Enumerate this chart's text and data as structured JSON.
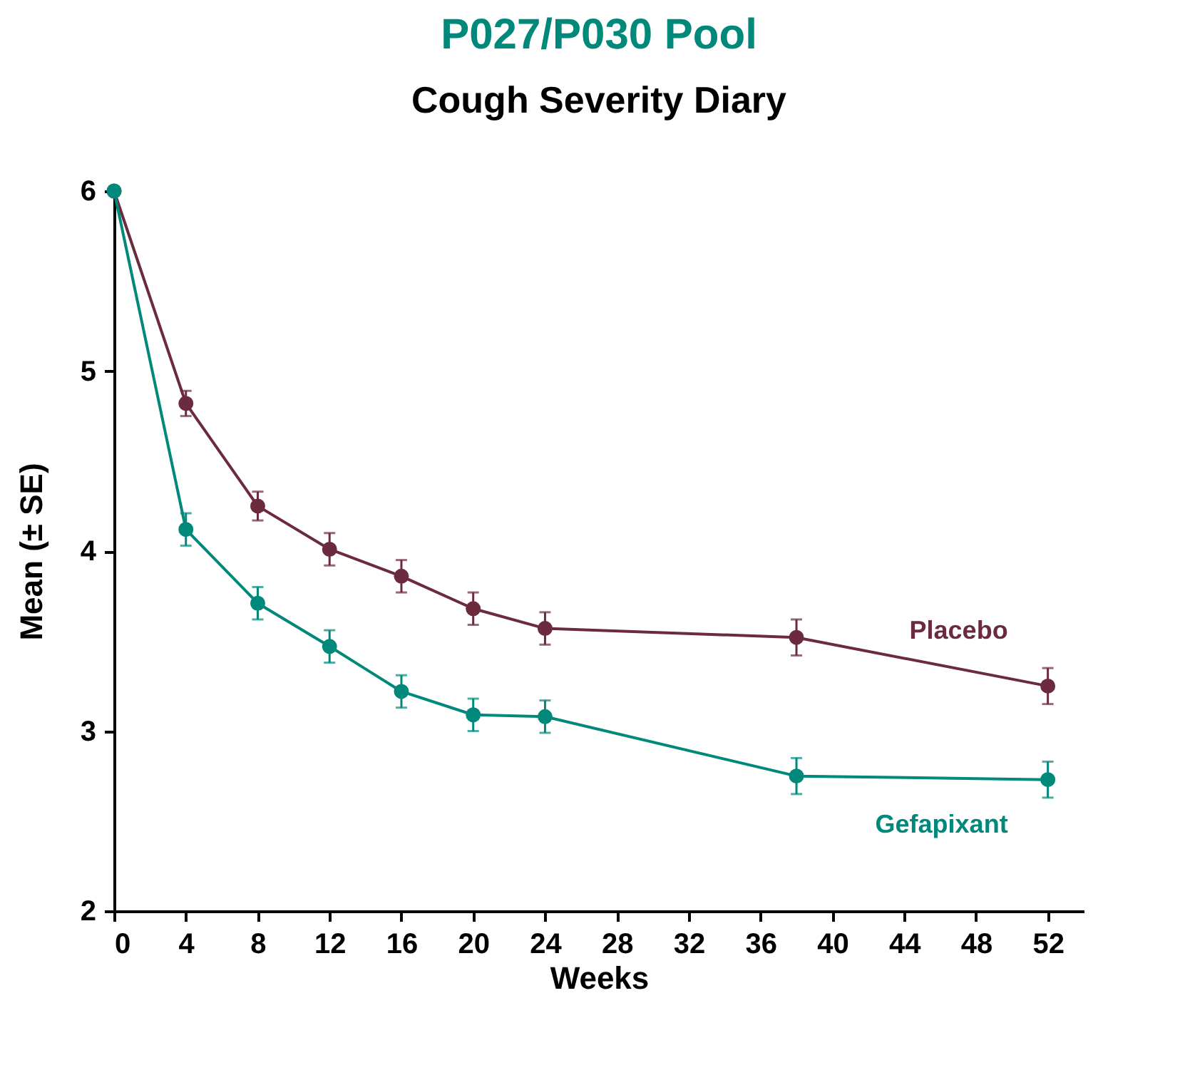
{
  "chart_data": {
    "type": "line",
    "title": "P027/P030 Pool",
    "subtitle": "Cough Severity Diary",
    "xlabel": "Weeks",
    "ylabel": "Mean (± SE)",
    "x": [
      0,
      4,
      8,
      12,
      16,
      20,
      24,
      38,
      52
    ],
    "series": [
      {
        "name": "Placebo",
        "color": "#6b2a3e",
        "values": [
          6.0,
          4.82,
          4.25,
          4.01,
          3.86,
          3.68,
          3.57,
          3.52,
          3.25
        ],
        "errors": [
          null,
          0.07,
          0.08,
          0.09,
          0.09,
          0.09,
          0.09,
          0.1,
          0.1
        ]
      },
      {
        "name": "Gefapixant",
        "color": "#00897b",
        "values": [
          6.0,
          4.12,
          3.71,
          3.47,
          3.22,
          3.09,
          3.08,
          2.75,
          2.73
        ],
        "errors": [
          null,
          0.09,
          0.09,
          0.09,
          0.09,
          0.09,
          0.09,
          0.1,
          0.1
        ]
      }
    ],
    "xlim": [
      0,
      54
    ],
    "xticks": [
      0,
      4,
      8,
      12,
      16,
      20,
      24,
      28,
      32,
      36,
      40,
      44,
      48,
      52
    ],
    "ylim": [
      2,
      6
    ],
    "yticks": [
      2,
      3,
      4,
      5,
      6
    ],
    "grid": false,
    "legend": false,
    "marker": "circle",
    "line_style": "solid"
  }
}
